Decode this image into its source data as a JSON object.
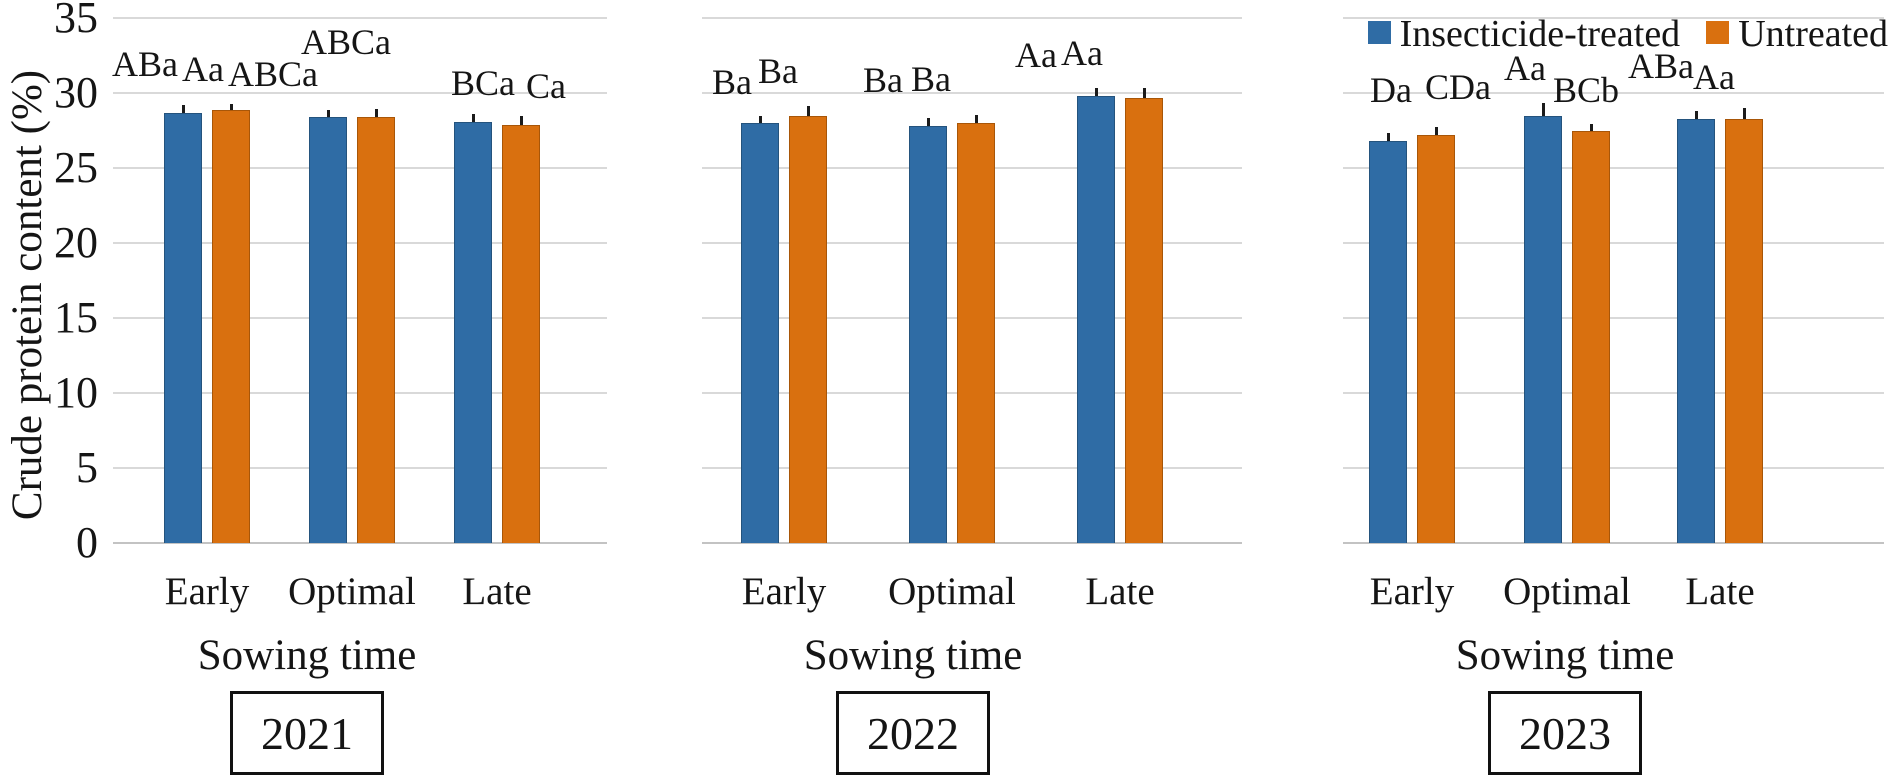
{
  "figure": {
    "y_axis_title": "Crude protein content (%)",
    "x_axis_title": "Sowing time",
    "legend": [
      {
        "label": "Insecticide-treated",
        "color": "#2f6ca5"
      },
      {
        "label": "Untreated",
        "color": "#d9700f"
      }
    ],
    "colors": {
      "bar_blue": "#2f6ca5",
      "bar_blue_edge": "#24537d",
      "bar_orange": "#d9700f",
      "bar_orange_edge": "#a85608",
      "gridline": "#d9d9d9",
      "error_bar": "#1b1b1b"
    }
  },
  "chart_data": [
    {
      "type": "bar",
      "year": "2021",
      "title": "2021",
      "categories": [
        "Early",
        "Optimal",
        "Late"
      ],
      "xlabel": "Sowing time",
      "ylabel": "Crude protein content (%)",
      "ylim": [
        0,
        35
      ],
      "yticks": [
        0,
        5,
        10,
        15,
        20,
        25,
        30,
        35
      ],
      "grid": true,
      "legend_position": "top-right",
      "series": [
        {
          "name": "Insecticide-treated",
          "color": "#2f6ca5",
          "values": [
            28.7,
            28.4,
            28.1
          ],
          "errors": [
            0.5,
            0.45,
            0.5
          ],
          "labels": [
            {
              "text": "ABa",
              "dx": -38,
              "dy": -16
            },
            {
              "text": "ABCa",
              "dx": -55,
              "dy": -10
            },
            {
              "text": "BCa",
              "dx": 10,
              "dy": -6
            }
          ]
        },
        {
          "name": "Untreated",
          "color": "#d9700f",
          "values": [
            28.9,
            28.4,
            27.9
          ],
          "errors": [
            0.4,
            0.55,
            0.6
          ],
          "labels": [
            {
              "text": "Aa",
              "dx": -28,
              "dy": -8
            },
            {
              "text": "ABCa",
              "dx": -30,
              "dy": -42
            },
            {
              "text": "Ca",
              "dx": 25,
              "dy": -6
            }
          ]
        }
      ]
    },
    {
      "type": "bar",
      "year": "2022",
      "title": "2022",
      "categories": [
        "Early",
        "Optimal",
        "Late"
      ],
      "xlabel": "Sowing time",
      "ylabel": "Crude protein content (%)",
      "ylim": [
        0,
        35
      ],
      "yticks": [
        0,
        5,
        10,
        15,
        20,
        25,
        30,
        35
      ],
      "grid": true,
      "series": [
        {
          "name": "Insecticide-treated",
          "color": "#2f6ca5",
          "values": [
            28.0,
            27.8,
            29.8
          ],
          "errors": [
            0.45,
            0.55,
            0.55
          ],
          "labels": [
            {
              "text": "Ba",
              "dx": -28,
              "dy": -8
            },
            {
              "text": "Ba",
              "dx": -45,
              "dy": -13
            },
            {
              "text": "Aa",
              "dx": -60,
              "dy": -8
            }
          ]
        },
        {
          "name": "Untreated",
          "color": "#d9700f",
          "values": [
            28.5,
            28.0,
            29.7
          ],
          "errors": [
            0.65,
            0.5,
            0.65
          ],
          "labels": [
            {
              "text": "Ba",
              "dx": -30,
              "dy": -12
            },
            {
              "text": "Ba",
              "dx": -45,
              "dy": -11
            },
            {
              "text": "Aa",
              "dx": -62,
              "dy": -12
            }
          ]
        }
      ]
    },
    {
      "type": "bar",
      "year": "2023",
      "title": "2023",
      "categories": [
        "Early",
        "Optimal",
        "Late"
      ],
      "xlabel": "Sowing time",
      "ylabel": "Crude protein content (%)",
      "ylim": [
        0,
        35
      ],
      "yticks": [
        0,
        5,
        10,
        15,
        20,
        25,
        30,
        35
      ],
      "grid": true,
      "series": [
        {
          "name": "Insecticide-treated",
          "color": "#2f6ca5",
          "values": [
            26.8,
            28.5,
            28.3
          ],
          "errors": [
            0.5,
            0.85,
            0.55
          ],
          "labels": [
            {
              "text": "Da",
              "dx": 3,
              "dy": -18
            },
            {
              "text": "Aa",
              "dx": -18,
              "dy": -15
            },
            {
              "text": "ABa",
              "dx": -35,
              "dy": -20
            }
          ]
        },
        {
          "name": "Untreated",
          "color": "#d9700f",
          "values": [
            27.2,
            27.5,
            28.3
          ],
          "errors": [
            0.55,
            0.45,
            0.7
          ],
          "labels": [
            {
              "text": "CDa",
              "dx": 22,
              "dy": -15
            },
            {
              "text": "BCb",
              "dx": -5,
              "dy": -8
            },
            {
              "text": "Aa",
              "dx": -30,
              "dy": -9
            }
          ]
        }
      ]
    }
  ]
}
